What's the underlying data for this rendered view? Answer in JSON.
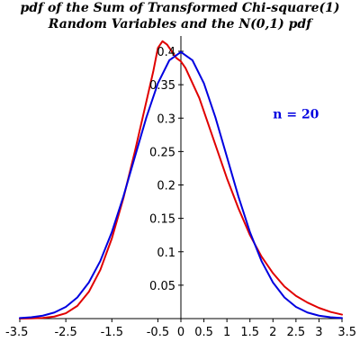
{
  "chart_data": {
    "type": "line",
    "title": "pdf of the Sum of Transformed Chi-square(1)",
    "subtitle": "Random Variables and the N(0,1) pdf",
    "xlabel": "",
    "ylabel": "",
    "xlim": [
      -3.5,
      3.5
    ],
    "ylim": [
      0,
      0.42
    ],
    "x_ticks": [
      "-3.5",
      "-2.5",
      "-1.5",
      "-0.5",
      "0",
      "0.5",
      "1",
      "1.5",
      "2",
      "2.5",
      "3",
      "3.5"
    ],
    "y_ticks": [
      "0.05",
      "0.1",
      "0.15",
      "0.2",
      "0.25",
      "0.3",
      "0.35",
      "0.4"
    ],
    "grid": false,
    "annotation": "n = 20",
    "annotation_position": {
      "x": 2.5,
      "y": 0.3
    },
    "series": [
      {
        "color": "#e00000",
        "x": [
          -3.5,
          -3.25,
          -3.0,
          -2.75,
          -2.5,
          -2.25,
          -2.0,
          -1.75,
          -1.5,
          -1.25,
          -1.0,
          -0.9,
          -0.8,
          -0.7,
          -0.6,
          -0.5,
          -0.4,
          -0.3,
          -0.2,
          -0.1,
          0.0,
          0.1,
          0.2,
          0.3,
          0.4,
          0.5,
          0.75,
          1.0,
          1.25,
          1.5,
          1.75,
          2.0,
          2.25,
          2.5,
          2.75,
          3.0,
          3.25,
          3.5
        ],
        "values": [
          0.0,
          0.0003,
          0.001,
          0.003,
          0.008,
          0.019,
          0.04,
          0.073,
          0.12,
          0.18,
          0.25,
          0.28,
          0.31,
          0.34,
          0.37,
          0.405,
          0.415,
          0.41,
          0.4,
          0.39,
          0.385,
          0.375,
          0.36,
          0.345,
          0.33,
          0.31,
          0.26,
          0.21,
          0.165,
          0.125,
          0.093,
          0.068,
          0.048,
          0.034,
          0.024,
          0.016,
          0.01,
          0.006
        ]
      },
      {
        "color": "#0000e0",
        "x": [
          -3.5,
          -3.25,
          -3.0,
          -2.75,
          -2.5,
          -2.25,
          -2.0,
          -1.75,
          -1.5,
          -1.25,
          -1.0,
          -0.75,
          -0.5,
          -0.25,
          0.0,
          0.25,
          0.5,
          0.75,
          1.0,
          1.25,
          1.5,
          1.75,
          2.0,
          2.25,
          2.5,
          2.75,
          3.0,
          3.25,
          3.5
        ],
        "values": [
          0.0009,
          0.002,
          0.0044,
          0.0091,
          0.0175,
          0.0317,
          0.054,
          0.0863,
          0.1295,
          0.1826,
          0.242,
          0.3011,
          0.3521,
          0.3867,
          0.3989,
          0.3867,
          0.3521,
          0.3011,
          0.242,
          0.1826,
          0.1295,
          0.0863,
          0.054,
          0.0317,
          0.0175,
          0.0091,
          0.0044,
          0.002,
          0.0009
        ]
      }
    ]
  }
}
